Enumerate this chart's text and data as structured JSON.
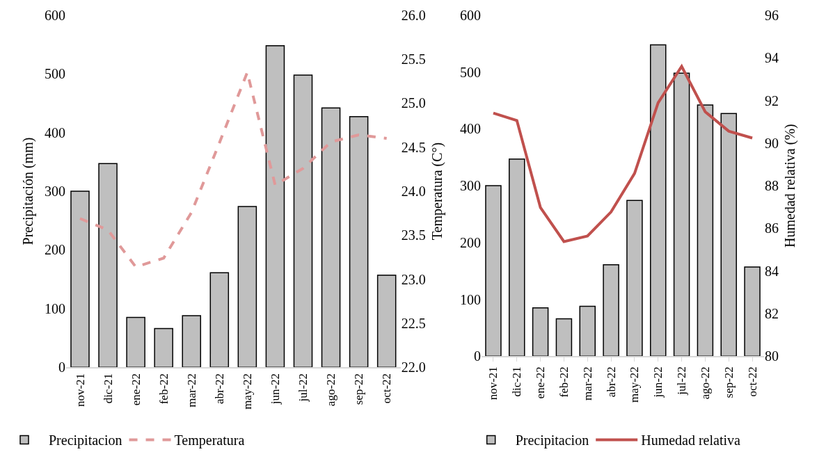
{
  "chart_data": [
    {
      "type": "bar",
      "categories": [
        "nov-21",
        "dic-21",
        "ene-22",
        "feb-22",
        "mar-22",
        "abr-22",
        "may-22",
        "jun-22",
        "jul-22",
        "ago-22",
        "sep-22",
        "oct-22"
      ],
      "series": [
        {
          "name": "Precipitacion",
          "color": "#bfbfbf",
          "values": [
            300,
            347,
            85,
            66,
            88,
            161,
            274,
            548,
            498,
            442,
            427,
            157
          ]
        },
        {
          "name": "Temperatura",
          "type": "line",
          "axis": "y2",
          "color": "#e09999",
          "line_style": "dashed",
          "values": [
            23.69,
            23.56,
            23.14,
            23.24,
            23.76,
            24.55,
            25.35,
            24.07,
            24.26,
            24.56,
            24.64,
            24.6
          ]
        }
      ],
      "ylabel": "Precipitación (mm)",
      "y2label": "Temperatura (C°)",
      "ylim": [
        0,
        600
      ],
      "yticks": [
        0,
        100,
        200,
        300,
        400,
        500,
        600
      ],
      "y2lim": [
        22,
        26
      ],
      "y2ticks": [
        {
          "value": 22,
          "label": "22.0"
        },
        {
          "value": 22.5,
          "label": "22.5"
        },
        {
          "value": 23,
          "label": "23.0"
        },
        {
          "value": 23.5,
          "label": "23.5"
        },
        {
          "value": 24,
          "label": "24.0"
        },
        {
          "value": 24.5,
          "label": "24.5"
        },
        {
          "value": 25,
          "label": "25.0"
        },
        {
          "value": 25.5,
          "label": "25.5"
        },
        {
          "value": 26,
          "label": "26.0"
        }
      ],
      "legend": "bottom"
    },
    {
      "type": "bar",
      "categories": [
        "nov-21",
        "dic-21",
        "ene-22",
        "feb-22",
        "mar-22",
        "abr-22",
        "may-22",
        "jun-22",
        "jul-22",
        "ago-22",
        "sep-22",
        "oct-22"
      ],
      "series": [
        {
          "name": "Precipitacion",
          "color": "#bfbfbf",
          "values": [
            300,
            347,
            85,
            66,
            88,
            161,
            274,
            548,
            498,
            442,
            427,
            157
          ]
        },
        {
          "name": "Humedad relativa",
          "type": "line",
          "axis": "y2",
          "color": "#c0504d",
          "line_style": "solid",
          "values": [
            91.41,
            91.06,
            86.98,
            85.38,
            85.64,
            86.77,
            88.58,
            91.89,
            93.6,
            91.47,
            90.56,
            90.24
          ]
        }
      ],
      "y2label": "Humedad relativa (%)",
      "ylim": [
        0,
        600
      ],
      "yticks": [
        0,
        100,
        200,
        300,
        400,
        500,
        600
      ],
      "y2lim": [
        80,
        96
      ],
      "y2ticks": [
        80,
        82,
        84,
        86,
        88,
        90,
        92,
        94,
        96
      ],
      "legend": "bottom"
    }
  ]
}
